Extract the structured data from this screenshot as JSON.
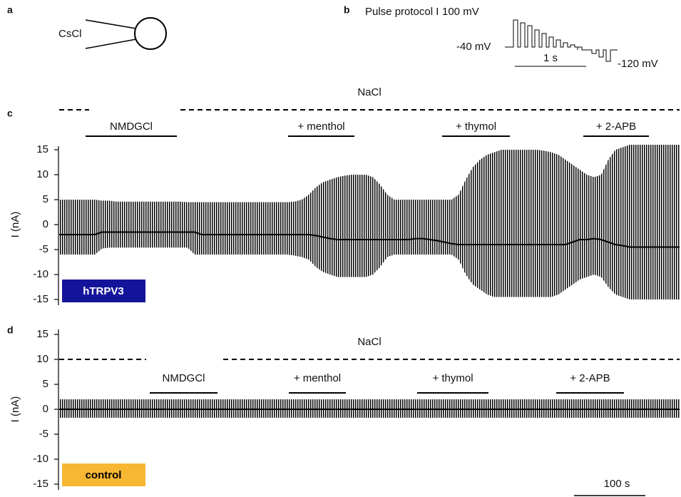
{
  "panel_a": {
    "label": "a",
    "electrode": "CsCl"
  },
  "panel_b": {
    "label": "b",
    "title": "Pulse protocol I",
    "v_high": "100 mV",
    "v_hold": "-40 mV",
    "v_low": "-120 mV",
    "scale": "1 s"
  },
  "chart_data": [
    {
      "type": "line",
      "label": "c",
      "ylabel": "I (nA)",
      "ylim": [
        -16,
        16
      ],
      "yticks": [
        -15,
        -10,
        -5,
        0,
        5,
        10,
        15
      ],
      "xlim": [
        0,
        870
      ],
      "trace_color": "#000000",
      "x": [
        0,
        10,
        20,
        30,
        40,
        50,
        60,
        70,
        80,
        90,
        100,
        110,
        120,
        130,
        140,
        150,
        160,
        170,
        180,
        190,
        200,
        210,
        220,
        230,
        240,
        250,
        260,
        270,
        280,
        290,
        300,
        310,
        320,
        330,
        340,
        350,
        360,
        370,
        380,
        390,
        400,
        410,
        420,
        430,
        440,
        450,
        460,
        470,
        480,
        490,
        500,
        510,
        520,
        530,
        540,
        550,
        560,
        570,
        580,
        590,
        600,
        610,
        620,
        630,
        640,
        650,
        660,
        670,
        680,
        690,
        700,
        710,
        720,
        730,
        740,
        750,
        760,
        770,
        780,
        790,
        800,
        810,
        820,
        830,
        840,
        850,
        860,
        870
      ],
      "upper": [
        5,
        5,
        5,
        5,
        5,
        5,
        4.8,
        4.8,
        4.6,
        4.6,
        4.6,
        4.6,
        4.6,
        4.6,
        4.6,
        4.6,
        4.6,
        4.6,
        4.5,
        4.5,
        4.5,
        4.5,
        4.5,
        4.5,
        4.5,
        4.5,
        4.5,
        4.5,
        4.5,
        4.5,
        4.5,
        4.5,
        4.5,
        4.6,
        5,
        6,
        7.5,
        8.5,
        9,
        9.5,
        9.8,
        10,
        10,
        10,
        9.5,
        8,
        6,
        5,
        5,
        5,
        5,
        5,
        5,
        5,
        5,
        5,
        6,
        9,
        11.5,
        13,
        14,
        14.5,
        15,
        15,
        15,
        15,
        15,
        15,
        14.8,
        14.5,
        14,
        13,
        12,
        11,
        10,
        9.5,
        10,
        13,
        15,
        15.5,
        16,
        16,
        16,
        16,
        16,
        16,
        16,
        16
      ],
      "lower": [
        -6,
        -6,
        -6,
        -6,
        -6,
        -6,
        -4.8,
        -4.6,
        -4.6,
        -4.6,
        -4.6,
        -4.6,
        -4.6,
        -4.6,
        -4.6,
        -4.6,
        -4.6,
        -4.6,
        -4.6,
        -6,
        -6,
        -6,
        -6,
        -6,
        -6,
        -6,
        -6,
        -6,
        -6,
        -6,
        -6,
        -6,
        -6,
        -6.2,
        -6.5,
        -7,
        -8.5,
        -9.5,
        -10,
        -10.5,
        -10.5,
        -10.5,
        -10.5,
        -10.5,
        -10,
        -8.5,
        -6.5,
        -6,
        -6,
        -6,
        -6,
        -6,
        -6,
        -6,
        -6,
        -6,
        -7,
        -10,
        -12,
        -13,
        -14,
        -14.5,
        -14.5,
        -14.5,
        -14.5,
        -14.5,
        -14.5,
        -14.5,
        -14.5,
        -14.5,
        -14,
        -13,
        -12,
        -11,
        -10.5,
        -10,
        -10.5,
        -12.5,
        -14,
        -14.5,
        -15,
        -15,
        -15,
        -15,
        -15,
        -15,
        -15,
        -15
      ],
      "baseline": [
        -2,
        -2,
        -2,
        -2,
        -2,
        -2,
        -1.5,
        -1.5,
        -1.5,
        -1.5,
        -1.5,
        -1.5,
        -1.5,
        -1.5,
        -1.5,
        -1.5,
        -1.5,
        -1.5,
        -1.5,
        -1.5,
        -2,
        -2,
        -2,
        -2,
        -2,
        -2,
        -2,
        -2,
        -2,
        -2,
        -2,
        -2,
        -2,
        -2,
        -2,
        -2,
        -2.2,
        -2.5,
        -2.8,
        -3,
        -3,
        -3,
        -3,
        -3,
        -3,
        -3,
        -3,
        -3,
        -3,
        -3,
        -2.8,
        -2.8,
        -3,
        -3.2,
        -3.5,
        -3.8,
        -4,
        -4,
        -4,
        -4,
        -4,
        -4,
        -4,
        -4,
        -4,
        -4,
        -4,
        -4,
        -4,
        -4,
        -4,
        -4,
        -3.5,
        -3,
        -3,
        -2.8,
        -3,
        -3.5,
        -4,
        -4.2,
        -4.5,
        -4.5,
        -4.5,
        -4.5,
        -4.5,
        -4.5,
        -4.5,
        -4.5
      ],
      "solution": {
        "text": "NaCl",
        "segments": [
          [
            0,
            42
          ],
          [
            170,
            870
          ]
        ]
      },
      "bars": [
        {
          "text": "NMDGCl",
          "x": [
            37,
            165
          ]
        },
        {
          "text": "+ menthol",
          "x": [
            321,
            414
          ]
        },
        {
          "text": "+ thymol",
          "x": [
            537,
            632
          ]
        },
        {
          "text": "+ 2-APB",
          "x": [
            735,
            827
          ]
        }
      ],
      "badge": {
        "text": "hTRPV3",
        "color": "#14149a",
        "text_color": "#ffffff"
      }
    },
    {
      "type": "line",
      "label": "d",
      "ylabel": "I (nA)",
      "ylim": [
        -16,
        16
      ],
      "yticks": [
        -15,
        -10,
        -5,
        0,
        5,
        10,
        15
      ],
      "xlim": [
        0,
        870
      ],
      "trace_color": "#000000",
      "x": [
        0,
        870
      ],
      "upper": [
        2,
        2
      ],
      "lower": [
        -1.7,
        -1.7
      ],
      "baseline": [
        0,
        0
      ],
      "solution": {
        "text": "NaCl",
        "segments": [
          [
            0,
            122
          ],
          [
            230,
            870
          ]
        ]
      },
      "bars": [
        {
          "text": "NMDGCl",
          "x": [
            127,
            222
          ]
        },
        {
          "text": "+ menthol",
          "x": [
            322,
            402
          ]
        },
        {
          "text": "+ thymol",
          "x": [
            502,
            602
          ]
        },
        {
          "text": "+ 2-APB",
          "x": [
            697,
            792
          ]
        }
      ],
      "badge": {
        "text": "control",
        "color": "#f7b733",
        "text_color": "#000000"
      },
      "scale_bar": {
        "text": "100 s",
        "x": [
          722,
          822
        ]
      }
    }
  ]
}
